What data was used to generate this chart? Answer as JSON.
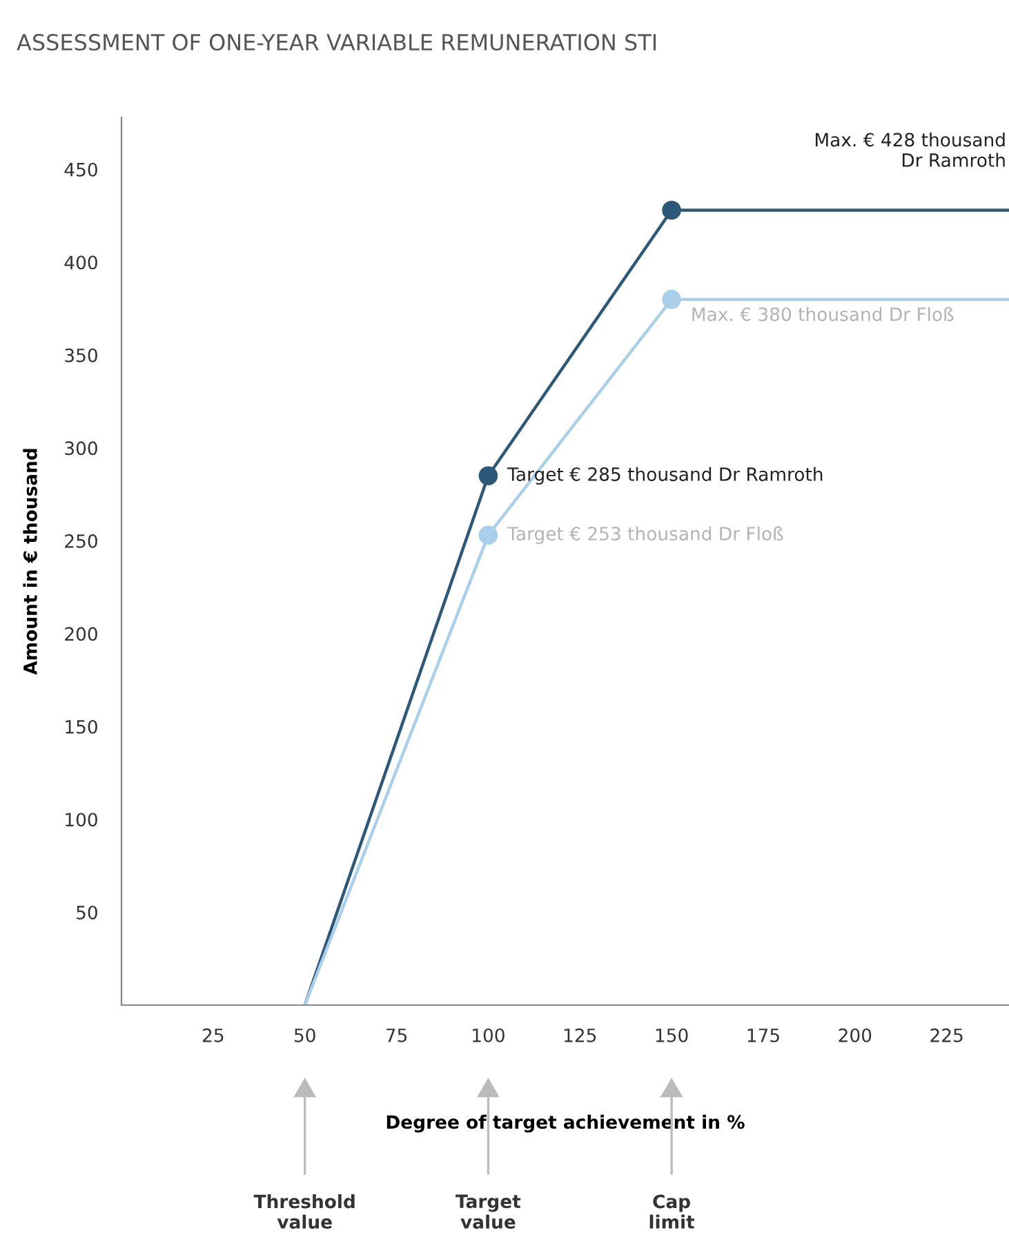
{
  "chart_data": {
    "type": "line",
    "title": "ASSESSMENT OF ONE-YEAR VARIABLE REMUNERATION STI",
    "xlabel": "Degree of target achievement in %",
    "ylabel": "Amount in € thousand",
    "series": [
      {
        "color": "#2e5878",
        "x": [
          50,
          100,
          150,
          242
        ],
        "values": [
          0,
          285,
          428,
          428
        ]
      },
      {
        "color": "#a9cfeb",
        "x": [
          50,
          100,
          150,
          242
        ],
        "values": [
          0,
          253,
          380,
          380
        ]
      },
      {
        "type": "scatter",
        "color": "#2e5878",
        "x": [
          100,
          150
        ],
        "values": [
          285,
          428
        ]
      },
      {
        "type": "scatter",
        "color": "#a9cfeb",
        "x": [
          100,
          150
        ],
        "values": [
          253,
          380
        ]
      }
    ],
    "annotations": [
      "Max. € 428 thousand\nDr Ramroth",
      {
        "text": "Max. € 380 thousand Dr Floß",
        "x": 150,
        "y": 380
      },
      {
        "text": "Target € 285 thousand Dr Ramroth",
        "x": 100,
        "y": 285
      },
      {
        "text": "Target € 253 thousand Dr Floß",
        "x": 100,
        "y": 253
      },
      {
        "text": "Threshold\nvalue",
        "x": 50
      },
      {
        "text": "Target\nvalue",
        "x": 100
      },
      {
        "text": "Cap\nlimit",
        "x": 150
      }
    ],
    "xlim": [
      0,
      242
    ],
    "ylim": [
      0,
      478
    ],
    "xticks": [
      25,
      50,
      75,
      100,
      125,
      150,
      175,
      200,
      225
    ],
    "yticks": [
      50,
      100,
      150,
      200,
      250,
      300,
      350,
      400,
      450
    ],
    "grid": false,
    "legend": false
  }
}
